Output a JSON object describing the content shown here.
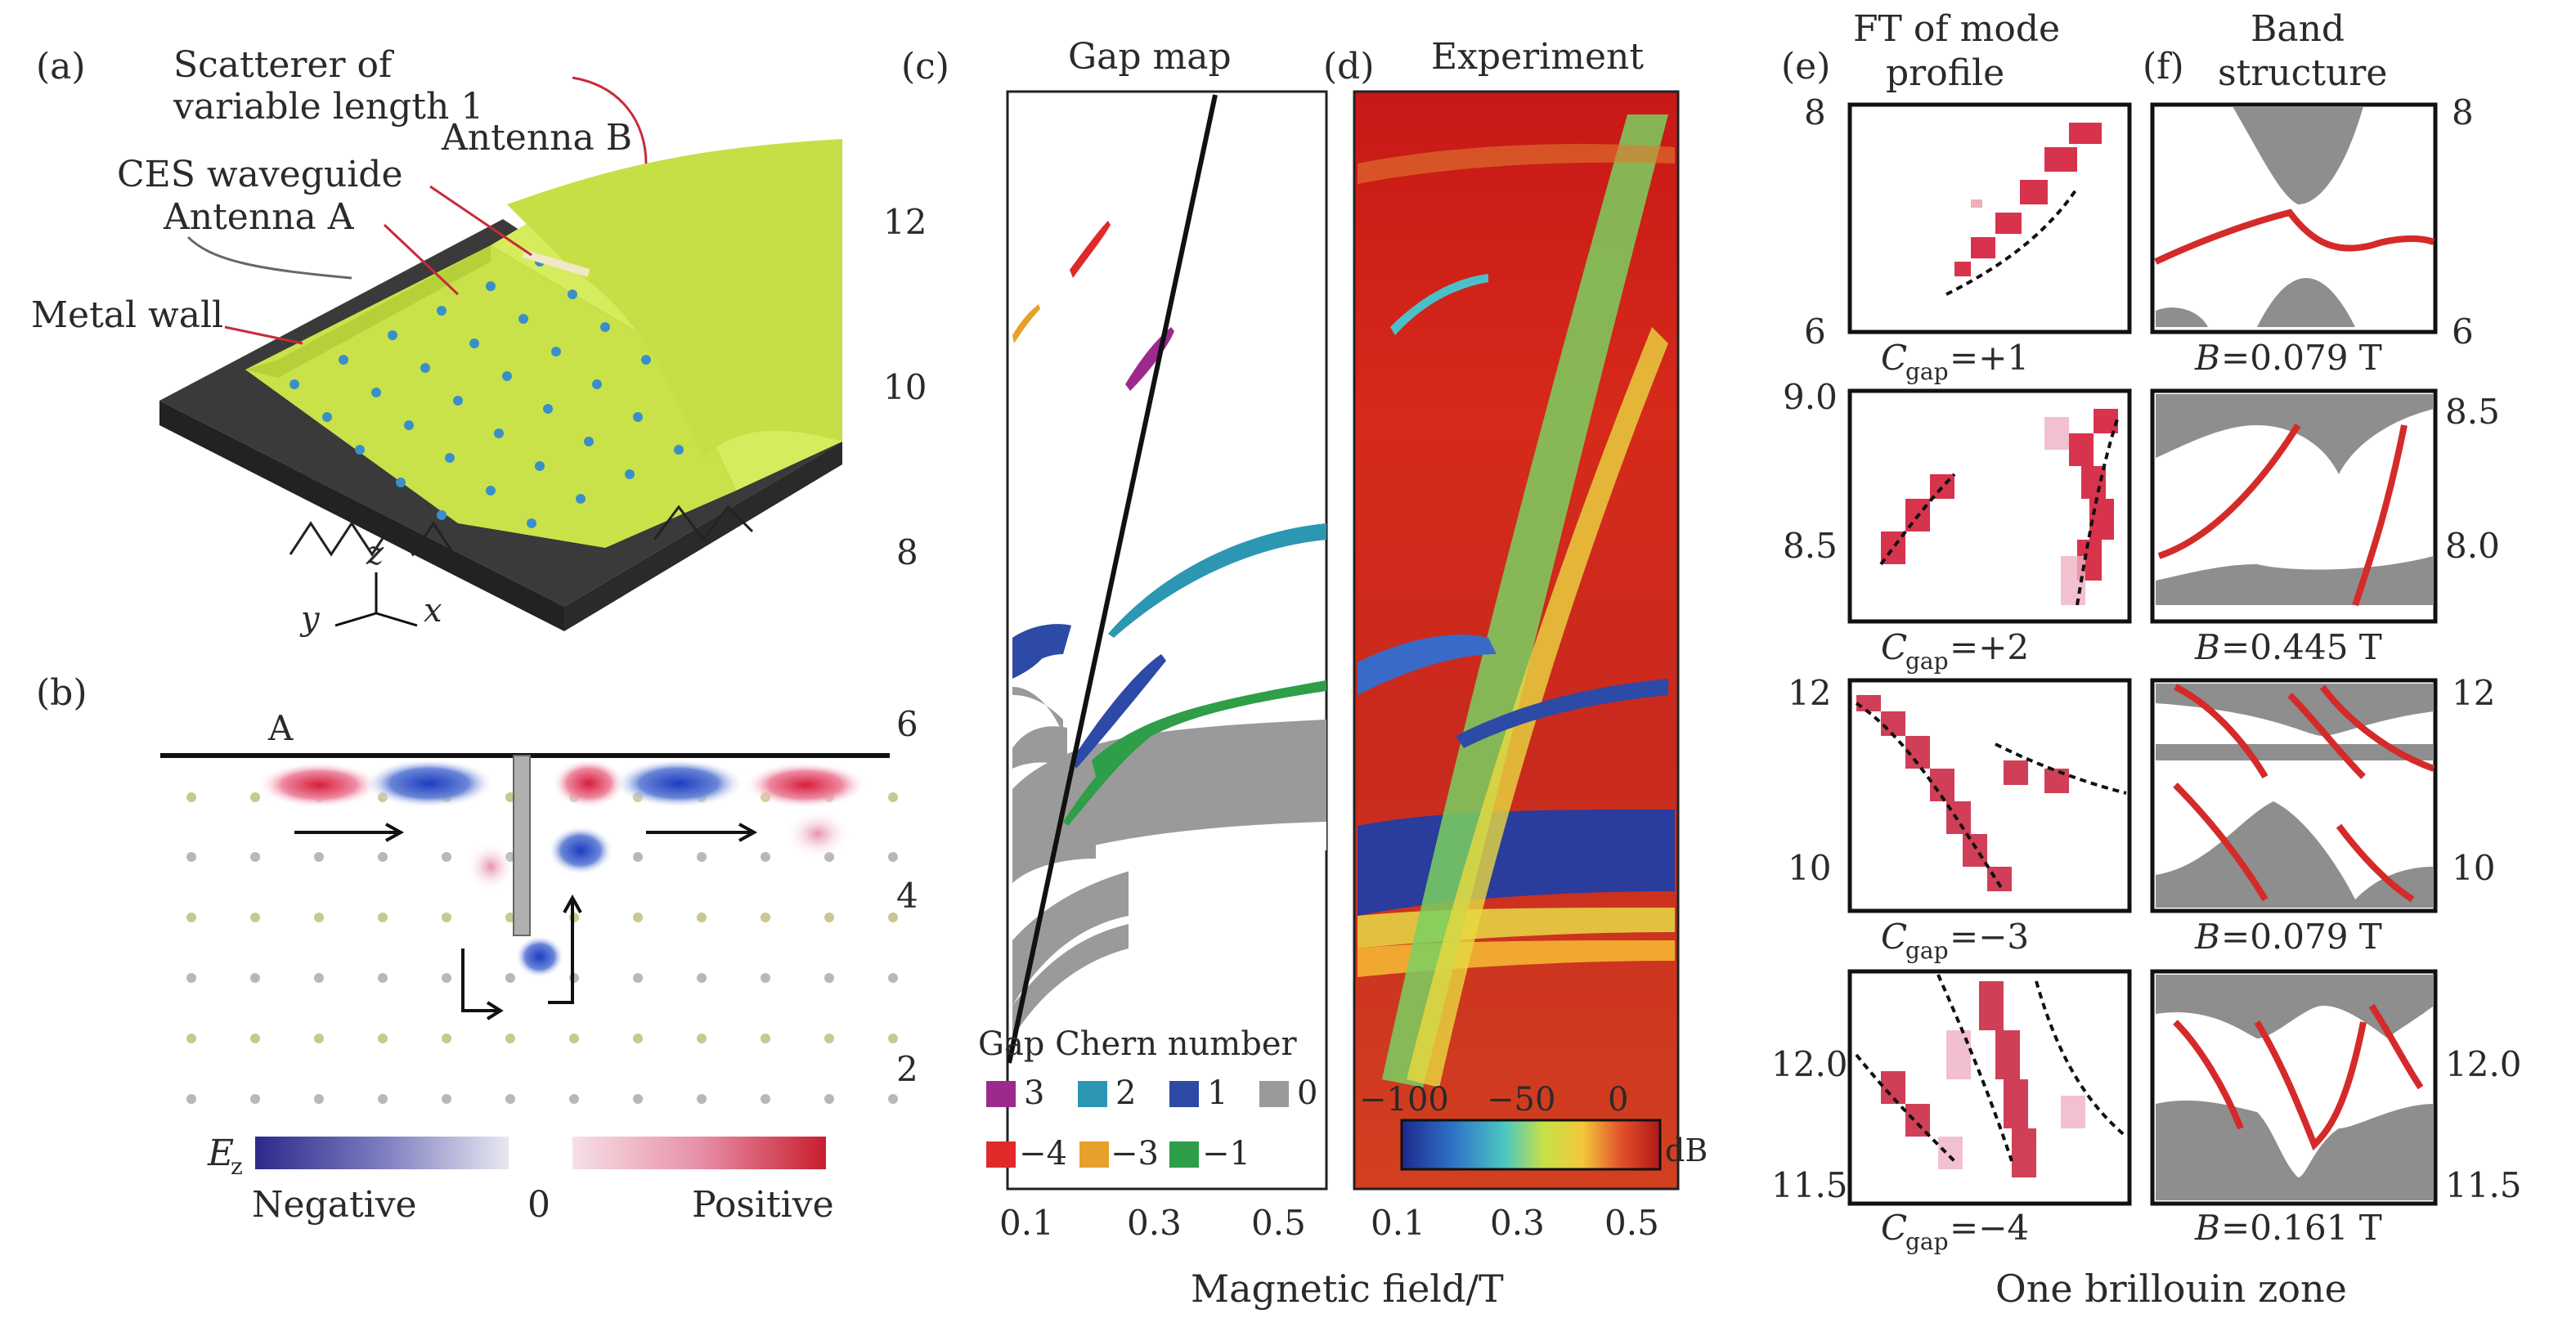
{
  "colors": {
    "c3": "#9b2a8c",
    "c2": "#2b97b3",
    "c1": "#2c4aa6",
    "c0": "#9a9a9a",
    "cm4": "#e02a2a",
    "cm3": "#e6a02c",
    "cm1": "#2e9e48",
    "band": "#d42a2a",
    "grey": "#8e8e8e"
  },
  "panel_a": {
    "label": "(a)",
    "scatterer": "Scatterer of",
    "scatterer2": "variable length 1",
    "antenna_b": "Antenna B",
    "ces": "CES waveguide",
    "antenna_a": "Antenna A",
    "metal_wall": "Metal wall",
    "axis_z": "z",
    "axis_y": "y",
    "axis_x": "x"
  },
  "panel_b": {
    "label": "(b)",
    "marker": "A",
    "field_symbol": "E",
    "field_sub": "z",
    "negative": "Negative",
    "zero": "0",
    "positive": "Positive"
  },
  "panel_c": {
    "label": "(c)",
    "title": "Gap map",
    "yticks": [
      "2",
      "4",
      "6",
      "8",
      "10",
      "12"
    ],
    "xticks": [
      "0.1",
      "0.3",
      "0.5"
    ],
    "legend_title": "Gap Chern number",
    "legend": [
      "3",
      "2",
      "1",
      "0",
      "−4",
      "−3",
      "−1"
    ]
  },
  "panel_d": {
    "label": "(d)",
    "title": "Experiment",
    "xticks": [
      "0.1",
      "0.3",
      "0.5"
    ],
    "cb_ticks": [
      "−100",
      "−50",
      "0"
    ],
    "cb_unit": "dB"
  },
  "xlabel": "Magnetic field/T",
  "panel_e": {
    "label": "(e)",
    "title1": "FT of mode",
    "title2": "profile",
    "rows": [
      {
        "yticks": [
          "8",
          "6"
        ],
        "caption_pre": "C",
        "caption_sub": "gap",
        "caption_val": "=+1"
      },
      {
        "yticks": [
          "9.0",
          "8.5"
        ],
        "caption_pre": "C",
        "caption_sub": "gap",
        "caption_val": "=+2"
      },
      {
        "yticks": [
          "12",
          "10"
        ],
        "caption_pre": "C",
        "caption_sub": "gap",
        "caption_val": "=−3"
      },
      {
        "yticks": [
          "12.0",
          "11.5"
        ],
        "caption_pre": "C",
        "caption_sub": "gap",
        "caption_val": "=−4"
      }
    ]
  },
  "panel_f": {
    "label": "(f)",
    "title1": "Band",
    "title2": "structure",
    "rows": [
      {
        "yticks": [
          "8",
          "6"
        ],
        "caption_pre": "B",
        "caption_val": "=0.079 T"
      },
      {
        "yticks": [
          "8.5",
          "8.0"
        ],
        "caption_pre": "B",
        "caption_val": "=0.445 T"
      },
      {
        "yticks": [
          "12",
          "10"
        ],
        "caption_pre": "B",
        "caption_val": "=0.079 T"
      },
      {
        "yticks": [
          "12.0",
          "11.5"
        ],
        "caption_pre": "B",
        "caption_val": "=0.161 T"
      }
    ]
  },
  "xlabel_ef": "One brillouin zone"
}
